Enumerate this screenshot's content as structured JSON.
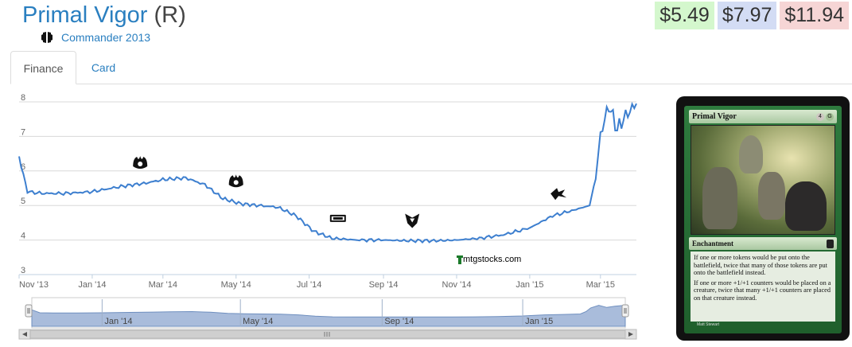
{
  "card": {
    "name": "Primal Vigor",
    "rarity": "(R)",
    "set_name": "Commander 2013",
    "set_icon": "commander-2013-set-icon"
  },
  "prices": {
    "low": "$5.49",
    "mid": "$7.97",
    "high": "$11.94",
    "colors": {
      "low": "#d4f7cd",
      "mid": "#d3dcf4",
      "high": "#f6d5d5"
    }
  },
  "tabs": [
    {
      "label": "Finance",
      "active": true
    },
    {
      "label": "Card",
      "active": false
    }
  ],
  "chart_data": {
    "type": "line",
    "x_tick_labels": [
      "Nov '13",
      "Jan '14",
      "Mar '14",
      "May '14",
      "Jul '14",
      "Sep '14",
      "Nov '14",
      "Jan '15",
      "Mar '15"
    ],
    "y_tick_labels": [
      "3",
      "4",
      "5",
      "6",
      "7",
      "8"
    ],
    "ylim": [
      3,
      8
    ],
    "xlim": [
      "2013-11-01",
      "2015-03-31"
    ],
    "grid": true,
    "legend": "none",
    "line_color": "#3d7fcf",
    "series": [
      {
        "x": [
          "2013-11-01",
          "2013-11-08",
          "2013-11-20",
          "2013-12-10",
          "2014-01-01",
          "2014-01-25",
          "2014-02-15",
          "2014-03-01",
          "2014-03-20",
          "2014-04-05",
          "2014-04-20",
          "2014-05-05",
          "2014-05-20",
          "2014-06-05",
          "2014-06-20",
          "2014-07-05",
          "2014-07-20",
          "2014-08-10",
          "2014-09-01",
          "2014-09-20",
          "2014-10-15",
          "2014-11-01",
          "2014-11-20",
          "2014-12-10",
          "2015-01-01",
          "2015-01-20",
          "2015-02-05",
          "2015-02-20",
          "2015-02-25",
          "2015-03-01",
          "2015-03-08",
          "2015-03-15",
          "2015-03-22",
          "2015-03-31"
        ],
        "y": [
          6.4,
          5.4,
          5.35,
          5.35,
          5.4,
          5.55,
          5.65,
          5.75,
          5.8,
          5.6,
          5.2,
          5.05,
          5.0,
          4.95,
          4.7,
          4.25,
          4.05,
          4.0,
          4.0,
          3.98,
          3.98,
          4.0,
          4.05,
          4.15,
          4.35,
          4.7,
          4.85,
          5.0,
          5.8,
          7.05,
          7.9,
          7.2,
          7.6,
          7.95
        ]
      }
    ],
    "navigator": {
      "tick_labels": [
        "Jan '14",
        "May '14",
        "Sep '14",
        "Jan '15"
      ]
    },
    "annotations": [
      {
        "icon": "commander-set-icon",
        "date": "2014-02-10"
      },
      {
        "icon": "commander-set-icon",
        "date": "2014-05-01"
      },
      {
        "icon": "m15-set-icon",
        "date": "2014-07-25"
      },
      {
        "icon": "khans-set-icon",
        "date": "2014-09-25"
      },
      {
        "icon": "fate-reforged-set-icon",
        "date": "2015-01-25"
      }
    ],
    "watermark": "mtgstocks.com"
  },
  "card_image": {
    "name": "Primal Vigor",
    "type": "Enchantment",
    "mana_cost": [
      "4",
      "G"
    ],
    "rules_text": [
      "If one or more tokens would be put onto the battlefield, twice that many of those tokens are put onto the battlefield instead.",
      "If one or more +1/+1 counters would be placed on a creature, twice that many +1/+1 counters are placed on that creature instead."
    ],
    "artist": "Matt Stewart"
  }
}
